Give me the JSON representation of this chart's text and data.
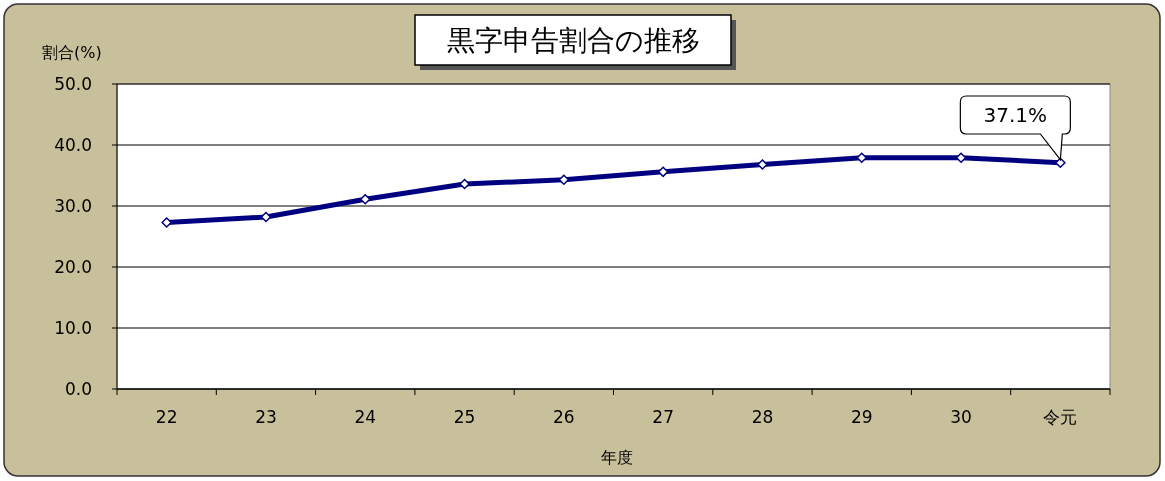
{
  "chart_data": {
    "type": "line",
    "title": "黒字申告割合の推移",
    "xlabel": "年度",
    "ylabel": "割合(%)",
    "categories": [
      "22",
      "23",
      "24",
      "25",
      "26",
      "27",
      "28",
      "29",
      "30",
      "令元"
    ],
    "series": [
      {
        "color": "#000080",
        "values": [
          27.3,
          28.2,
          31.1,
          33.6,
          34.3,
          35.6,
          36.8,
          37.9,
          37.9,
          37.1
        ],
        "value_labels": [
          null,
          null,
          null,
          null,
          null,
          null,
          null,
          null,
          null,
          "37.1%"
        ]
      }
    ],
    "ylim": [
      0,
      50
    ],
    "yticks": [
      {
        "value": 0,
        "label": "0.0"
      },
      {
        "value": 10,
        "label": "10.0"
      },
      {
        "value": 20,
        "label": "20.0"
      },
      {
        "value": 30,
        "label": "30.0"
      },
      {
        "value": 40,
        "label": "40.0"
      },
      {
        "value": 50,
        "label": "50.0"
      }
    ],
    "grid": "y",
    "marker": "diamond"
  }
}
